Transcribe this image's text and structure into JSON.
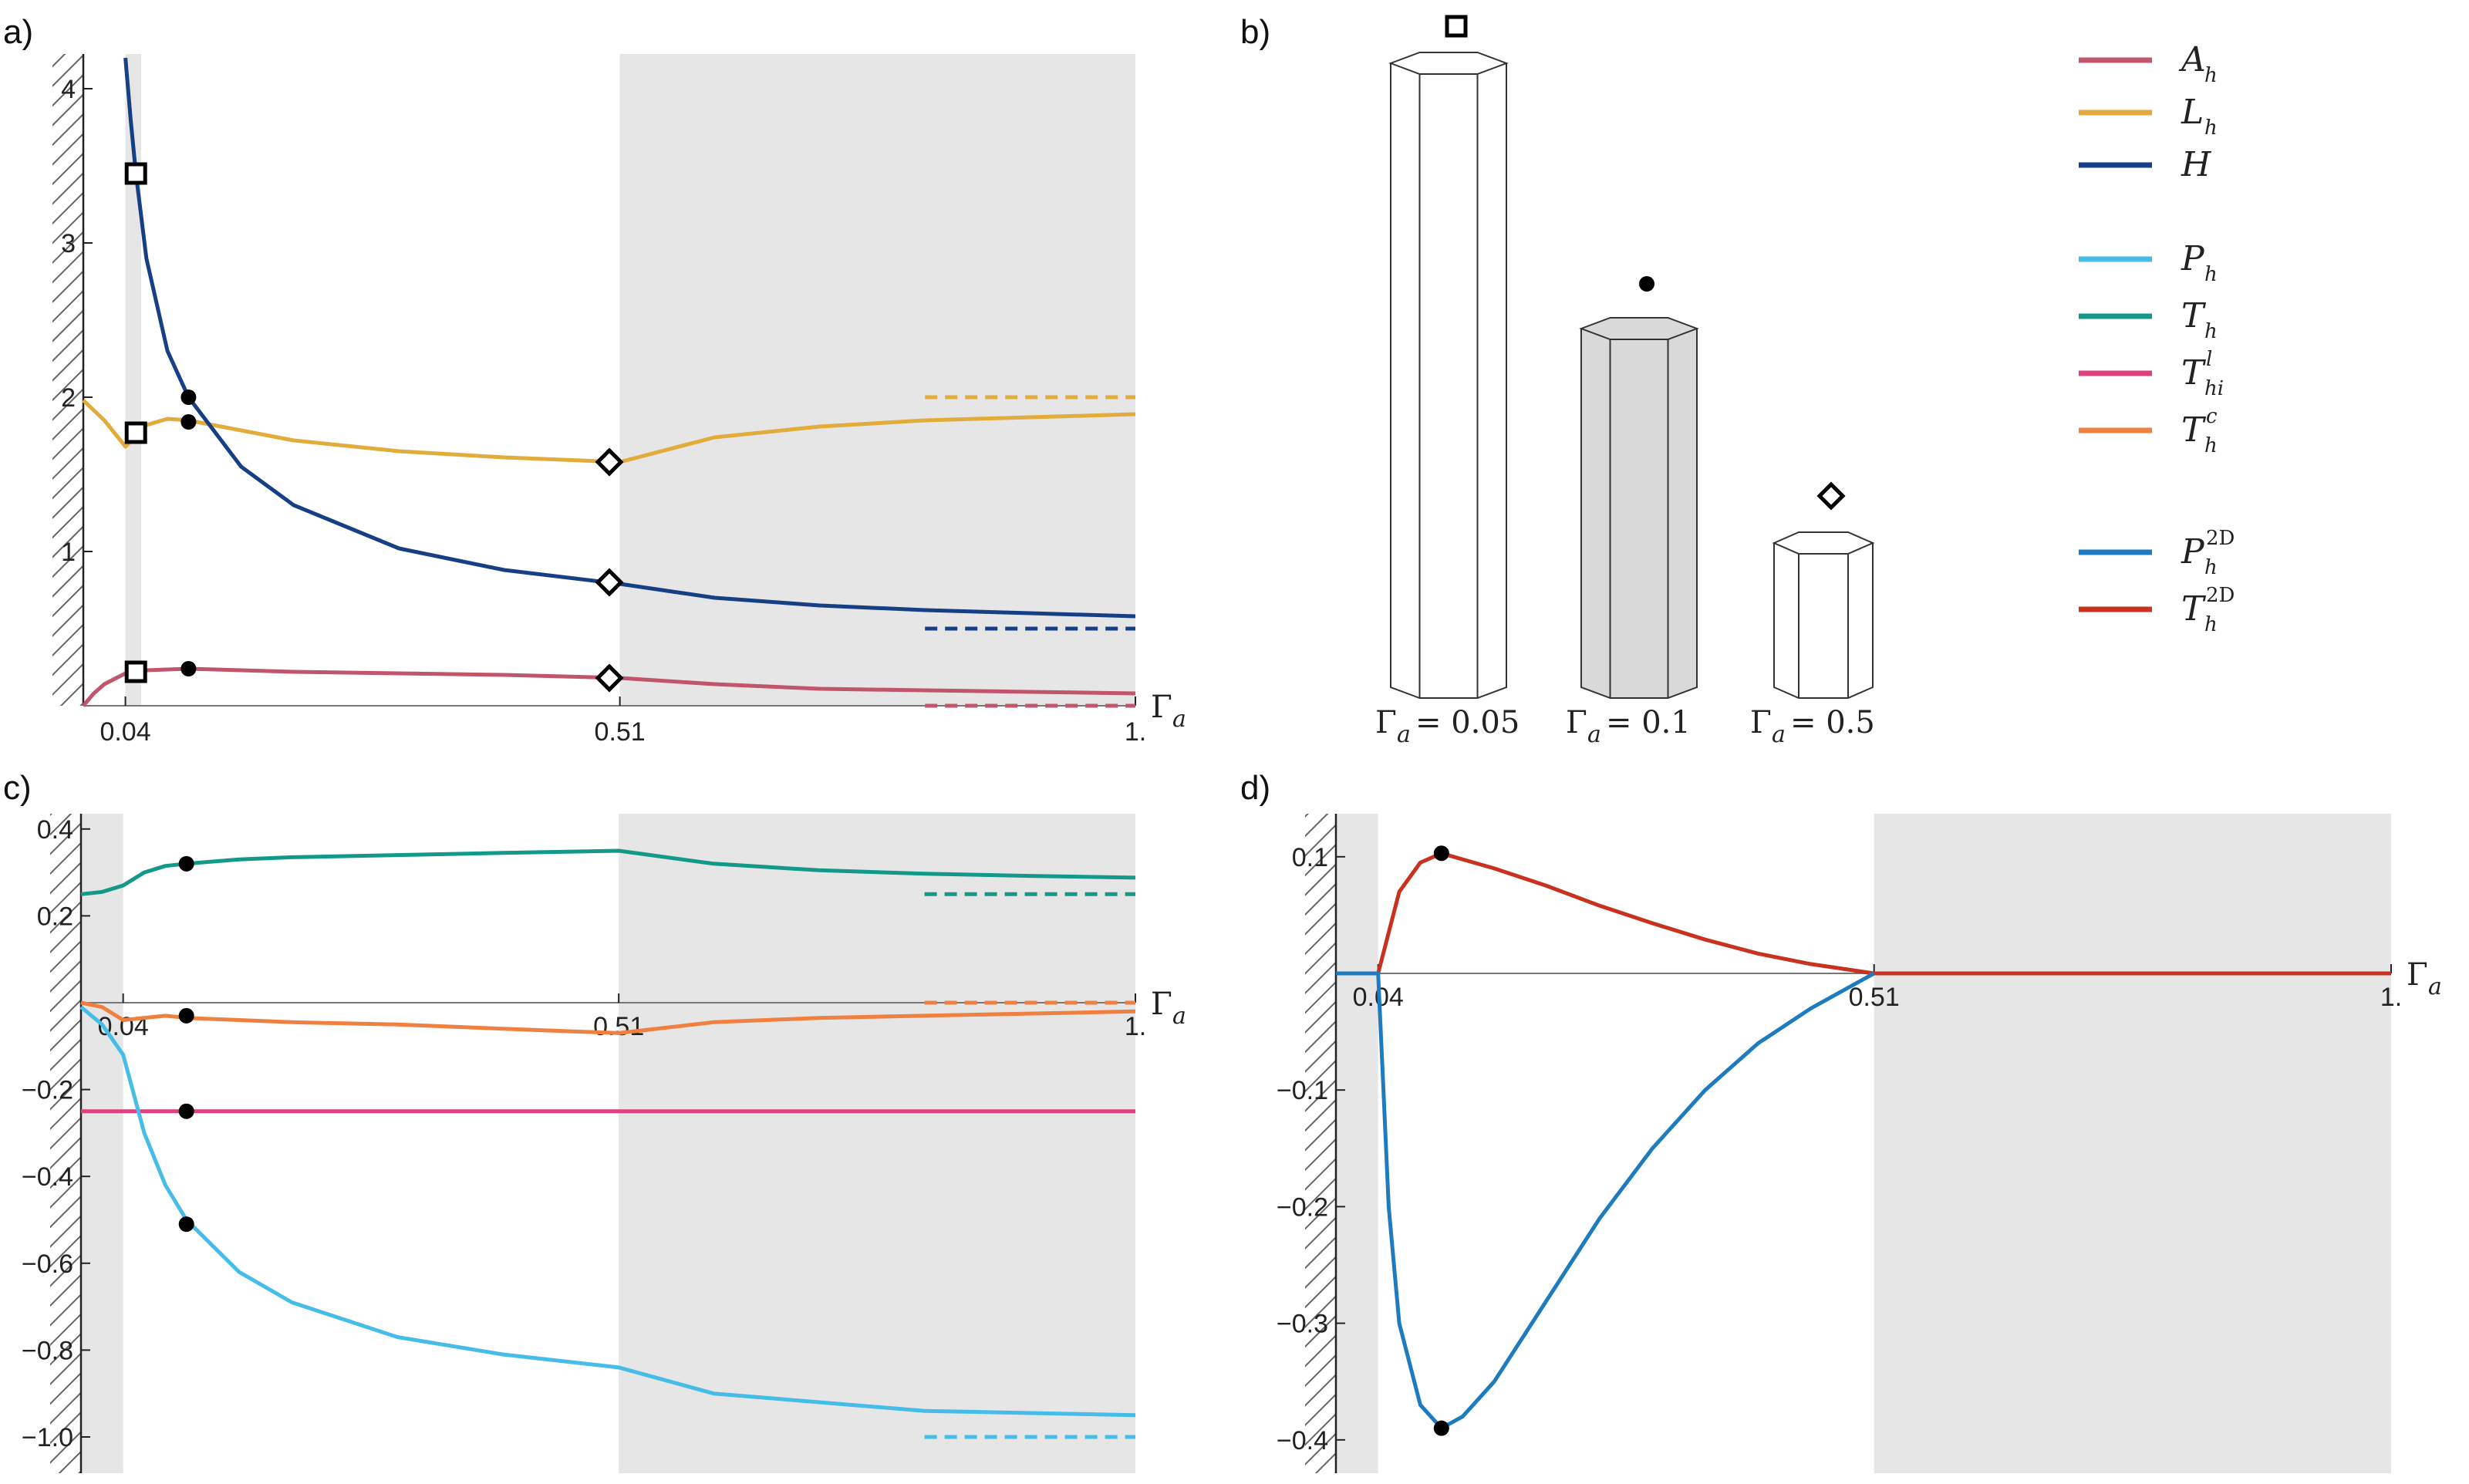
{
  "panels": {
    "a": {
      "label": "a)",
      "x_ticks": [
        "0.04",
        "0.51",
        "1."
      ],
      "y_ticks": [
        "1",
        "2",
        "3",
        "4"
      ],
      "x_symbol": "Γ",
      "x_sub": "a"
    },
    "b": {
      "label": "b)",
      "prisms": [
        {
          "gamma": "0.05",
          "marker": "square",
          "fill": "#ffffff"
        },
        {
          "gamma": "0.1",
          "marker": "circle",
          "fill": "#d9d9d9"
        },
        {
          "gamma": "0.5",
          "marker": "diamond",
          "fill": "#ffffff"
        }
      ],
      "gamma_symbol": "Γ",
      "gamma_sub": "a"
    },
    "c": {
      "label": "c)",
      "x_ticks": [
        "0.04",
        "0.51",
        "1."
      ],
      "y_ticks": [
        "0.4",
        "0.2",
        "−0.2",
        "−0.4",
        "−0.6",
        "−0.8",
        "−1.0"
      ],
      "x_symbol": "Γ",
      "x_sub": "a"
    },
    "d": {
      "label": "d)",
      "x_ticks": [
        "0.04",
        "0.51",
        "1."
      ],
      "y_ticks": [
        "0.1",
        "−0.1",
        "−0.2",
        "−0.3",
        "−0.4"
      ],
      "x_symbol": "Γ",
      "x_sub": "a"
    }
  },
  "legend": [
    {
      "name": "A",
      "sub": "h",
      "sup": "",
      "color": "#c0556c"
    },
    {
      "name": "L",
      "sub": "h",
      "sup": "",
      "color": "#e2ac3a"
    },
    {
      "name": "H",
      "sub": "",
      "sup": "",
      "color": "#163f86"
    },
    {
      "name": "P",
      "sub": "h",
      "sup": "",
      "color": "#45bde8"
    },
    {
      "name": "T",
      "sub": "h",
      "sup": "",
      "color": "#13998a"
    },
    {
      "name": "T",
      "sub": "hi",
      "sup": "l",
      "color": "#e0407f"
    },
    {
      "name": "T",
      "sub": "h",
      "sup": "c",
      "color": "#f08040"
    },
    {
      "name": "P",
      "sub": "h",
      "sup": "2D",
      "color": "#1f7bbf"
    },
    {
      "name": "T",
      "sub": "h",
      "sup": "2D",
      "color": "#c9321f"
    }
  ],
  "chart_data": [
    {
      "panel": "a",
      "type": "line",
      "xlabel": "Γa",
      "xlim": [
        0,
        1
      ],
      "ylim": [
        0,
        4.2
      ],
      "excluded_x": [
        0,
        0.04
      ],
      "shaded_x": [
        [
          0.04,
          0.055
        ],
        [
          0.51,
          1
        ]
      ],
      "series": [
        {
          "name": "A_h",
          "color": "#c0556c",
          "x": [
            0.0,
            0.01,
            0.02,
            0.04,
            0.06,
            0.1,
            0.2,
            0.3,
            0.4,
            0.51,
            0.6,
            0.7,
            0.8,
            0.9,
            1.0
          ],
          "y": [
            0.0,
            0.08,
            0.14,
            0.21,
            0.23,
            0.24,
            0.22,
            0.21,
            0.2,
            0.18,
            0.14,
            0.11,
            0.1,
            0.09,
            0.08
          ],
          "asymptote": 0.0
        },
        {
          "name": "L_h",
          "color": "#e2ac3a",
          "x": [
            0.0,
            0.02,
            0.04,
            0.06,
            0.08,
            0.1,
            0.2,
            0.3,
            0.4,
            0.51,
            0.6,
            0.7,
            0.8,
            0.9,
            1.0
          ],
          "y": [
            1.98,
            1.85,
            1.68,
            1.82,
            1.86,
            1.85,
            1.72,
            1.65,
            1.61,
            1.58,
            1.74,
            1.81,
            1.85,
            1.87,
            1.89
          ],
          "asymptote": 2.0
        },
        {
          "name": "H",
          "color": "#163f86",
          "x": [
            0.04,
            0.045,
            0.05,
            0.06,
            0.08,
            0.1,
            0.15,
            0.2,
            0.3,
            0.4,
            0.51,
            0.6,
            0.7,
            0.8,
            0.9,
            1.0
          ],
          "y": [
            4.2,
            3.8,
            3.45,
            2.9,
            2.3,
            2.0,
            1.55,
            1.3,
            1.02,
            0.88,
            0.79,
            0.7,
            0.65,
            0.62,
            0.6,
            0.58
          ],
          "asymptote": 0.5
        }
      ],
      "markers": [
        {
          "shape": "square",
          "x": 0.05,
          "y": [
            3.45,
            1.77,
            0.22
          ]
        },
        {
          "shape": "circle",
          "x": 0.1,
          "y": [
            2.0,
            1.84,
            0.24
          ]
        },
        {
          "shape": "diamond",
          "x": 0.5,
          "y": [
            1.58,
            0.8,
            0.18
          ]
        }
      ]
    },
    {
      "panel": "c",
      "type": "line",
      "xlabel": "Γa",
      "xlim": [
        0,
        1
      ],
      "ylim": [
        -1.0,
        0.4
      ],
      "excluded_x": [
        0,
        0.04
      ],
      "shaded_x": [
        [
          0.0,
          0.04
        ],
        [
          0.51,
          1
        ]
      ],
      "series": [
        {
          "name": "T_h",
          "color": "#13998a",
          "x": [
            0.0,
            0.02,
            0.04,
            0.06,
            0.08,
            0.1,
            0.15,
            0.2,
            0.3,
            0.4,
            0.51,
            0.6,
            0.7,
            0.8,
            0.9,
            1.0
          ],
          "y": [
            0.25,
            0.255,
            0.27,
            0.3,
            0.315,
            0.32,
            0.33,
            0.335,
            0.34,
            0.345,
            0.35,
            0.32,
            0.305,
            0.297,
            0.292,
            0.288
          ],
          "asymptote": 0.25
        },
        {
          "name": "T_h^c",
          "color": "#f08040",
          "x": [
            0.0,
            0.02,
            0.04,
            0.06,
            0.08,
            0.1,
            0.15,
            0.2,
            0.3,
            0.4,
            0.51,
            0.6,
            0.7,
            0.8,
            0.9,
            1.0
          ],
          "y": [
            0.0,
            -0.01,
            -0.04,
            -0.035,
            -0.03,
            -0.035,
            -0.04,
            -0.045,
            -0.05,
            -0.06,
            -0.07,
            -0.045,
            -0.035,
            -0.03,
            -0.025,
            -0.02
          ],
          "asymptote": 0.0
        },
        {
          "name": "T_hi^l",
          "color": "#e0407f",
          "x": [
            0.0,
            1.0
          ],
          "y": [
            -0.25,
            -0.25
          ]
        },
        {
          "name": "P_h",
          "color": "#45bde8",
          "x": [
            0.0,
            0.02,
            0.04,
            0.06,
            0.08,
            0.1,
            0.15,
            0.2,
            0.3,
            0.4,
            0.51,
            0.6,
            0.7,
            0.8,
            0.9,
            1.0
          ],
          "y": [
            -0.01,
            -0.05,
            -0.12,
            -0.3,
            -0.42,
            -0.5,
            -0.62,
            -0.69,
            -0.77,
            -0.81,
            -0.84,
            -0.9,
            -0.92,
            -0.94,
            -0.945,
            -0.95
          ],
          "asymptote": -1.0
        }
      ],
      "markers": [
        {
          "shape": "circle",
          "x": 0.1,
          "y": [
            0.32,
            -0.03,
            -0.25,
            -0.51
          ]
        }
      ]
    },
    {
      "panel": "d",
      "type": "line",
      "xlabel": "Γa",
      "xlim": [
        0,
        1
      ],
      "ylim": [
        -0.4,
        0.1
      ],
      "excluded_x": [
        0,
        0.04
      ],
      "shaded_x": [
        [
          0.0,
          0.04
        ],
        [
          0.51,
          1
        ]
      ],
      "series": [
        {
          "name": "T_h^2D",
          "color": "#c9321f",
          "x": [
            0.0,
            0.04,
            0.06,
            0.08,
            0.1,
            0.15,
            0.2,
            0.25,
            0.3,
            0.35,
            0.4,
            0.45,
            0.51,
            0.6,
            0.8,
            1.0
          ],
          "y": [
            0.0,
            0.0,
            0.07,
            0.095,
            0.103,
            0.09,
            0.075,
            0.058,
            0.043,
            0.029,
            0.017,
            0.008,
            0.0,
            0.0,
            0.0,
            0.0
          ]
        },
        {
          "name": "P_h^2D",
          "color": "#1f7bbf",
          "x": [
            0.0,
            0.04,
            0.045,
            0.05,
            0.06,
            0.08,
            0.1,
            0.12,
            0.15,
            0.2,
            0.25,
            0.3,
            0.35,
            0.4,
            0.45,
            0.51
          ],
          "y": [
            0.0,
            0.0,
            -0.1,
            -0.2,
            -0.3,
            -0.37,
            -0.39,
            -0.38,
            -0.35,
            -0.28,
            -0.21,
            -0.15,
            -0.1,
            -0.06,
            -0.03,
            0.0
          ]
        }
      ],
      "markers": [
        {
          "shape": "circle",
          "x": 0.1,
          "y": [
            0.103,
            -0.39
          ]
        }
      ]
    }
  ]
}
